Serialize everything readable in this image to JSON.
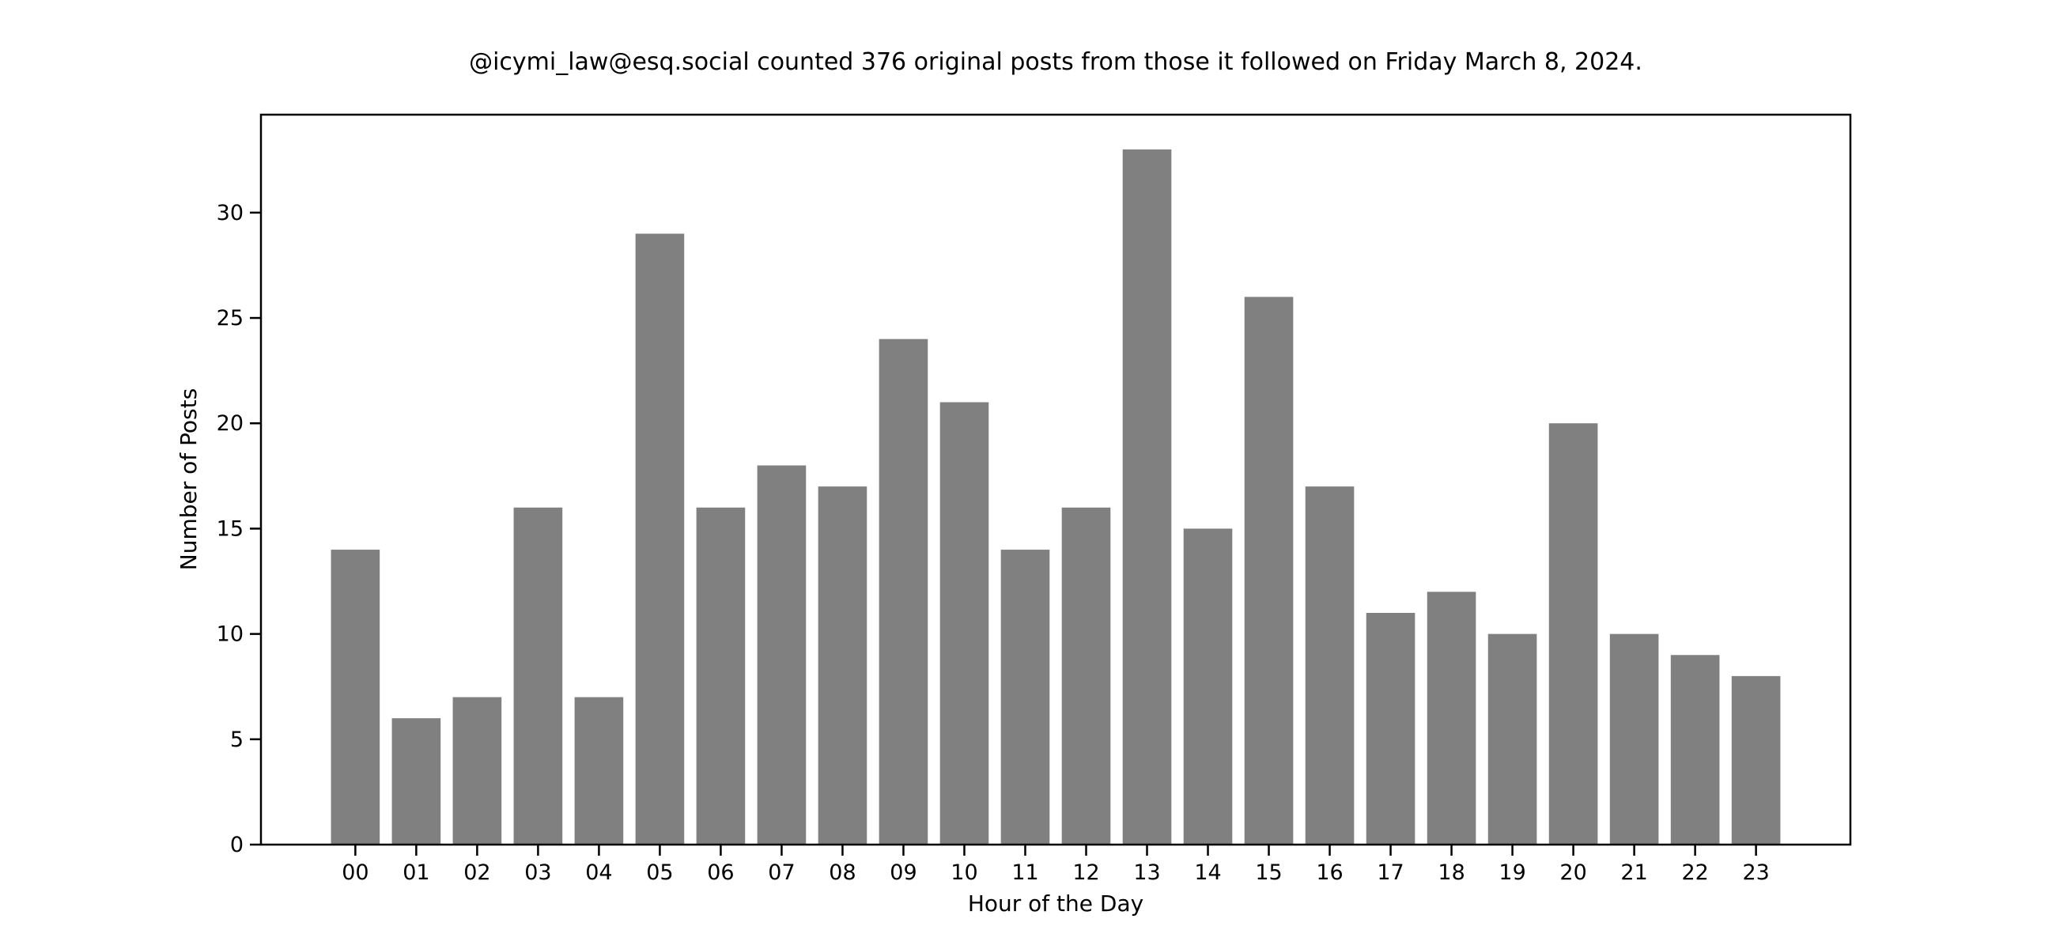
{
  "chart_data": {
    "type": "bar",
    "title": "@icymi_law@esq.social counted 376 original posts from those it followed on Friday March 8, 2024.",
    "xlabel": "Hour of the Day",
    "ylabel": "Number of Posts",
    "categories": [
      "00",
      "01",
      "02",
      "03",
      "04",
      "05",
      "06",
      "07",
      "08",
      "09",
      "10",
      "11",
      "12",
      "13",
      "14",
      "15",
      "16",
      "17",
      "18",
      "19",
      "20",
      "21",
      "22",
      "23"
    ],
    "values": [
      14,
      6,
      7,
      16,
      7,
      29,
      16,
      18,
      17,
      24,
      21,
      14,
      16,
      33,
      15,
      26,
      17,
      11,
      12,
      10,
      20,
      10,
      9,
      8
    ],
    "total_posts": 376,
    "yticks": [
      0,
      5,
      10,
      15,
      20,
      25,
      30
    ],
    "ylim": [
      0,
      34.65
    ],
    "xlim": [
      -1.55,
      24.55
    ],
    "bar_rel_width": 0.8,
    "bar_color": "#808080",
    "spine_color": "#000000",
    "text_color": "#000000",
    "background": "#ffffff",
    "grid": false,
    "legend": "none"
  }
}
